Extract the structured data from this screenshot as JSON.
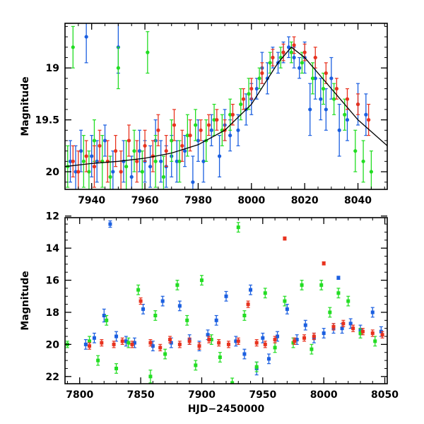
{
  "chart_data": [
    {
      "type": "scatter",
      "title": "",
      "xlabel": "",
      "ylabel": "Magnitude",
      "xlim": [
        7930,
        8051
      ],
      "ylim": [
        20.17,
        18.57
      ],
      "y_inverted": true,
      "xticks": [
        7940,
        7960,
        7980,
        8000,
        8020,
        8040
      ],
      "yticks": [
        19,
        19.5,
        20
      ],
      "grid": false,
      "legend": "none",
      "error_bars": true,
      "series": [
        {
          "color": "#1b5fe0",
          "x": [
            7932,
            7934,
            7936,
            7938,
            7940,
            7942,
            7945,
            7948,
            7950,
            7952,
            7955,
            7958,
            7960,
            7962,
            7964,
            7966,
            7968,
            7970,
            7972,
            7975,
            7978,
            7980,
            7982,
            7985,
            7988,
            7990,
            7992,
            7995,
            7998,
            8000,
            8002,
            8004,
            8006,
            8008,
            8010,
            8012,
            8014,
            8016,
            8018,
            8020,
            8022,
            8024,
            8026,
            8028,
            8030,
            8033,
            8036,
            8040,
            8043
          ],
          "values": [
            19.9,
            20.0,
            19.8,
            18.7,
            19.85,
            19.9,
            19.7,
            20.0,
            18.8,
            19.9,
            20.05,
            19.8,
            19.9,
            19.95,
            19.7,
            19.9,
            19.95,
            19.85,
            19.9,
            19.8,
            20.1,
            19.7,
            19.9,
            19.6,
            19.85,
            19.55,
            19.65,
            19.6,
            19.4,
            19.3,
            19.2,
            19.0,
            19.1,
            18.9,
            18.95,
            18.85,
            18.8,
            18.9,
            19.0,
            18.9,
            19.4,
            19.1,
            19.3,
            19.4,
            19.1,
            19.6,
            19.5,
            19.35,
            19.45
          ],
          "errors": [
            0.2,
            0.25,
            0.2,
            0.25,
            0.2,
            0.2,
            0.15,
            0.2,
            0.25,
            0.2,
            0.2,
            0.2,
            0.2,
            0.2,
            0.2,
            0.2,
            0.2,
            0.2,
            0.2,
            0.15,
            0.25,
            0.2,
            0.2,
            0.15,
            0.2,
            0.15,
            0.15,
            0.15,
            0.15,
            0.15,
            0.1,
            0.15,
            0.15,
            0.1,
            0.1,
            0.1,
            0.1,
            0.1,
            0.1,
            0.15,
            0.25,
            0.2,
            0.2,
            0.2,
            0.2,
            0.25,
            0.2,
            0.2,
            0.2
          ]
        },
        {
          "color": "#22dd22",
          "x": [
            7931,
            7933,
            7937,
            7939,
            7941,
            7944,
            7947,
            7950,
            7953,
            7956,
            7959,
            7961,
            7964,
            7967,
            7970,
            7973,
            7976,
            7979,
            7983,
            7986,
            7989,
            7992,
            7996,
            7999,
            8003,
            8007,
            8011,
            8015,
            8019,
            8023,
            8027,
            8031,
            8035,
            8039,
            8042,
            8045
          ],
          "values": [
            19.95,
            18.8,
            19.9,
            20.0,
            19.7,
            19.9,
            20.05,
            19.0,
            19.95,
            19.8,
            20.0,
            18.85,
            19.9,
            20.05,
            19.7,
            19.9,
            19.65,
            19.55,
            19.7,
            19.5,
            19.6,
            19.45,
            19.35,
            19.25,
            19.1,
            18.95,
            18.9,
            18.85,
            18.95,
            19.1,
            19.2,
            19.3,
            19.45,
            19.8,
            19.9,
            20.0
          ],
          "errors": [
            0.2,
            0.2,
            0.25,
            0.2,
            0.2,
            0.25,
            0.2,
            0.2,
            0.25,
            0.2,
            0.2,
            0.2,
            0.25,
            0.2,
            0.2,
            0.2,
            0.2,
            0.15,
            0.2,
            0.15,
            0.15,
            0.15,
            0.15,
            0.15,
            0.1,
            0.1,
            0.1,
            0.1,
            0.1,
            0.15,
            0.15,
            0.15,
            0.15,
            0.2,
            0.2,
            0.2
          ]
        },
        {
          "color": "#e8321e",
          "x": [
            7933,
            7935,
            7938,
            7941,
            7943,
            7946,
            7949,
            7951,
            7954,
            7957,
            7960,
            7963,
            7965,
            7968,
            7971,
            7974,
            7977,
            7981,
            7984,
            7987,
            7990,
            7993,
            7997,
            8000,
            8004,
            8008,
            8012,
            8016,
            8020,
            8024,
            8028,
            8032,
            8036,
            8040,
            8044
          ],
          "values": [
            19.9,
            20.0,
            19.85,
            19.95,
            19.75,
            19.9,
            19.8,
            20.0,
            19.7,
            19.9,
            19.75,
            19.85,
            19.6,
            19.8,
            19.55,
            19.75,
            19.65,
            19.6,
            19.55,
            19.5,
            19.6,
            19.45,
            19.3,
            19.2,
            19.05,
            18.9,
            18.85,
            18.78,
            18.85,
            18.9,
            19.05,
            19.2,
            19.3,
            19.35,
            19.5
          ],
          "errors": [
            0.15,
            0.2,
            0.15,
            0.2,
            0.15,
            0.2,
            0.15,
            0.2,
            0.15,
            0.2,
            0.15,
            0.15,
            0.15,
            0.15,
            0.15,
            0.15,
            0.15,
            0.1,
            0.1,
            0.1,
            0.1,
            0.1,
            0.1,
            0.1,
            0.1,
            0.08,
            0.08,
            0.08,
            0.08,
            0.1,
            0.1,
            0.1,
            0.1,
            0.1,
            0.15
          ]
        },
        {
          "color": "#000000",
          "line": true,
          "x": [
            7930,
            7940,
            7950,
            7960,
            7970,
            7980,
            7990,
            8000,
            8005,
            8010,
            8015,
            8020,
            8030,
            8040,
            8051
          ],
          "values": [
            19.95,
            19.92,
            19.9,
            19.87,
            19.82,
            19.74,
            19.6,
            19.35,
            19.15,
            18.95,
            18.8,
            18.9,
            19.2,
            19.5,
            19.75
          ]
        }
      ]
    },
    {
      "type": "scatter",
      "title": "",
      "xlabel": "HJD−2450000",
      "ylabel": "Magnitude",
      "xlim": [
        7788,
        8052
      ],
      "ylim": [
        22.45,
        12.1
      ],
      "y_inverted": true,
      "xticks": [
        7800,
        7850,
        7900,
        7950,
        8000,
        8050
      ],
      "yticks": [
        12,
        14,
        16,
        18,
        20,
        22
      ],
      "grid": false,
      "legend": "none",
      "error_bars": true,
      "series": [
        {
          "color": "#1b5fe0",
          "x": [
            7805,
            7812,
            7820,
            7825,
            7830,
            7838,
            7845,
            7852,
            7860,
            7868,
            7875,
            7882,
            7890,
            7898,
            7905,
            7912,
            7920,
            7928,
            7935,
            7940,
            7945,
            7950,
            7955,
            7962,
            7970,
            7978,
            7985,
            7992,
            8000,
            8008,
            8012,
            8015,
            8022,
            8030,
            8040,
            8047
          ],
          "values": [
            20.0,
            19.6,
            18.2,
            12.5,
            19.5,
            19.8,
            19.9,
            17.8,
            20.1,
            17.3,
            19.9,
            17.6,
            19.7,
            20.1,
            19.4,
            18.5,
            17.0,
            19.8,
            20.6,
            16.6,
            21.5,
            19.6,
            20.9,
            19.5,
            17.8,
            19.7,
            18.8,
            19.6,
            19.3,
            19.0,
            15.85,
            19.0,
            18.7,
            19.1,
            18.0,
            19.2
          ],
          "errors": [
            0.3,
            0.3,
            0.4,
            0.2,
            0.3,
            0.3,
            0.3,
            0.3,
            0.3,
            0.3,
            0.3,
            0.3,
            0.3,
            0.3,
            0.3,
            0.3,
            0.3,
            0.3,
            0.3,
            0.3,
            0.4,
            0.3,
            0.3,
            0.3,
            0.3,
            0.3,
            0.3,
            0.3,
            0.3,
            0.3,
            0.1,
            0.3,
            0.3,
            0.3,
            0.3,
            0.3
          ]
        },
        {
          "color": "#22dd22",
          "x": [
            7790,
            7808,
            7815,
            7822,
            7830,
            7840,
            7848,
            7858,
            7862,
            7870,
            7880,
            7888,
            7895,
            7900,
            7908,
            7915,
            7925,
            7930,
            7935,
            7945,
            7952,
            7960,
            7968,
            7975,
            7982,
            7990,
            7998,
            8005,
            8012,
            8020,
            8030,
            8042
          ],
          "values": [
            20.0,
            19.8,
            21.0,
            18.5,
            21.5,
            19.9,
            16.6,
            22.0,
            18.2,
            20.6,
            16.3,
            18.5,
            21.3,
            16.0,
            19.7,
            20.8,
            22.4,
            12.7,
            18.2,
            21.4,
            16.8,
            20.2,
            17.3,
            19.9,
            16.3,
            20.3,
            16.3,
            18.0,
            16.8,
            17.3,
            19.3,
            19.8
          ],
          "errors": [
            0.2,
            0.3,
            0.3,
            0.3,
            0.3,
            0.3,
            0.3,
            0.4,
            0.3,
            0.3,
            0.3,
            0.3,
            0.3,
            0.3,
            0.3,
            0.3,
            0.3,
            0.3,
            0.3,
            0.3,
            0.3,
            0.3,
            0.3,
            0.3,
            0.3,
            0.3,
            0.3,
            0.3,
            0.3,
            0.3,
            0.3,
            0.3
          ]
        },
        {
          "color": "#e8321e",
          "x": [
            7808,
            7818,
            7828,
            7835,
            7843,
            7850,
            7858,
            7866,
            7874,
            7882,
            7890,
            7898,
            7906,
            7914,
            7922,
            7930,
            7938,
            7945,
            7952,
            7960,
            7968,
            7976,
            7984,
            7992,
            8000,
            8008,
            8016,
            8024,
            8032,
            8040,
            8048
          ],
          "values": [
            20.1,
            19.9,
            20.0,
            19.8,
            20.0,
            17.3,
            19.9,
            20.2,
            19.7,
            20.0,
            19.8,
            20.1,
            19.7,
            19.9,
            20.0,
            19.8,
            17.5,
            19.9,
            20.0,
            19.7,
            13.4,
            19.8,
            19.6,
            19.5,
            14.95,
            18.9,
            18.7,
            19.0,
            19.2,
            19.3,
            19.4
          ],
          "errors": [
            0.2,
            0.2,
            0.2,
            0.2,
            0.2,
            0.2,
            0.2,
            0.2,
            0.2,
            0.2,
            0.2,
            0.2,
            0.2,
            0.2,
            0.2,
            0.2,
            0.2,
            0.2,
            0.2,
            0.2,
            0.1,
            0.2,
            0.2,
            0.2,
            0.1,
            0.2,
            0.2,
            0.2,
            0.2,
            0.2,
            0.2
          ]
        }
      ]
    }
  ]
}
